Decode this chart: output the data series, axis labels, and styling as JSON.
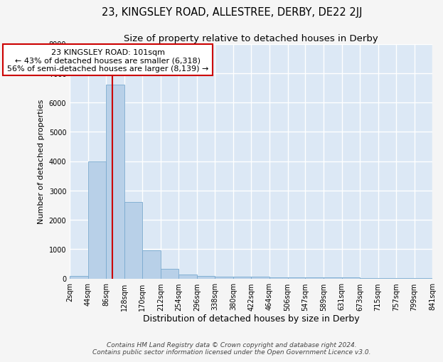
{
  "title": "23, KINGSLEY ROAD, ALLESTREE, DERBY, DE22 2JJ",
  "subtitle": "Size of property relative to detached houses in Derby",
  "xlabel": "Distribution of detached houses by size in Derby",
  "ylabel": "Number of detached properties",
  "bin_edges": [
    2,
    44,
    86,
    128,
    170,
    212,
    254,
    296,
    338,
    380,
    422,
    464,
    506,
    547,
    589,
    631,
    673,
    715,
    757,
    799,
    841
  ],
  "bar_heights": [
    75,
    4000,
    6600,
    2600,
    950,
    330,
    140,
    80,
    55,
    55,
    50,
    45,
    40,
    35,
    30,
    25,
    20,
    15,
    12,
    8
  ],
  "bar_color": "#b8d0e8",
  "bar_edge_color": "#7aaacf",
  "fig_bg_color": "#f5f5f5",
  "plot_bg_color": "#dce8f5",
  "grid_color": "#ffffff",
  "vline_x": 101,
  "vline_color": "#cc0000",
  "annotation_text": "23 KINGSLEY ROAD: 101sqm\n← 43% of detached houses are smaller (6,318)\n56% of semi-detached houses are larger (8,139) →",
  "annotation_box_color": "#cc0000",
  "ylim": [
    0,
    8000
  ],
  "yticks": [
    0,
    1000,
    2000,
    3000,
    4000,
    5000,
    6000,
    7000,
    8000
  ],
  "xtick_labels": [
    "2sqm",
    "44sqm",
    "86sqm",
    "128sqm",
    "170sqm",
    "212sqm",
    "254sqm",
    "296sqm",
    "338sqm",
    "380sqm",
    "422sqm",
    "464sqm",
    "506sqm",
    "547sqm",
    "589sqm",
    "631sqm",
    "673sqm",
    "715sqm",
    "757sqm",
    "799sqm",
    "841sqm"
  ],
  "footer_text": "Contains HM Land Registry data © Crown copyright and database right 2024.\nContains public sector information licensed under the Open Government Licence v3.0.",
  "title_fontsize": 10.5,
  "subtitle_fontsize": 9.5,
  "xlabel_fontsize": 9,
  "ylabel_fontsize": 8,
  "tick_fontsize": 7,
  "annotation_fontsize": 8,
  "footer_fontsize": 6.5
}
